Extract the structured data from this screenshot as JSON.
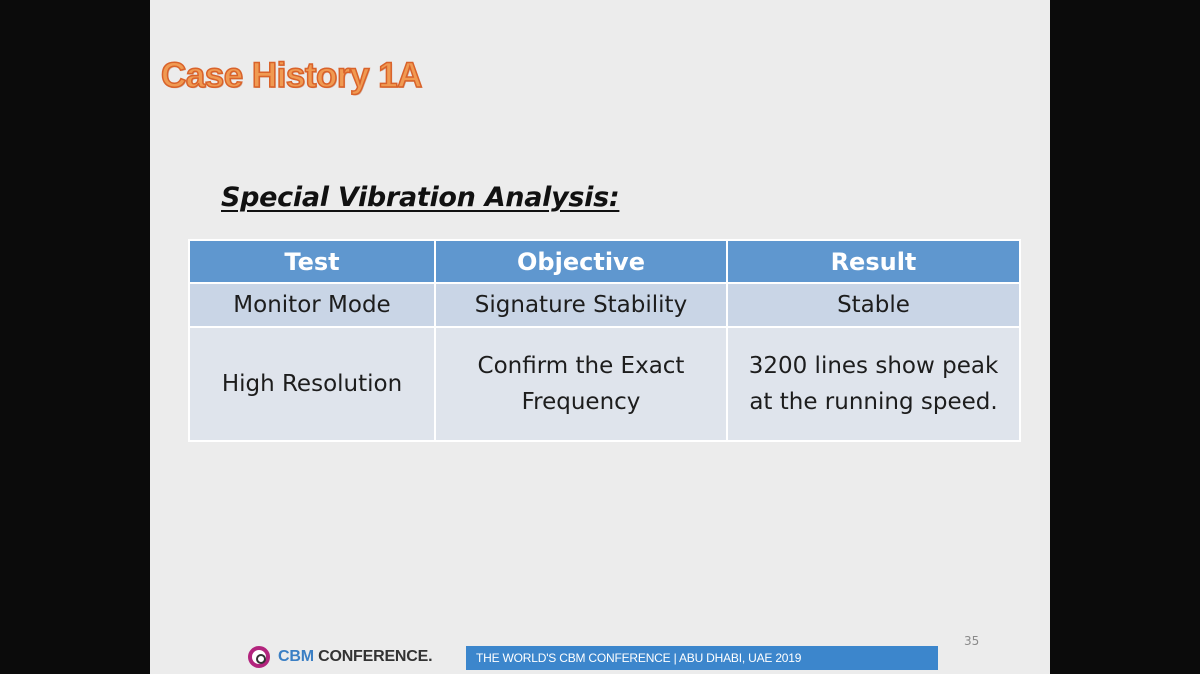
{
  "slide": {
    "title": "Case History 1A",
    "subtitle": "Special Vibration Analysis:",
    "page_number": "35"
  },
  "table": {
    "headers": [
      "Test",
      "Objective",
      "Result"
    ],
    "rows": [
      {
        "test": [
          "Monitor Mode"
        ],
        "objective": [
          "Signature Stability"
        ],
        "result": [
          "Stable"
        ]
      },
      {
        "test": [
          "High Resolution"
        ],
        "objective": [
          "Confirm the Exact",
          "Frequency"
        ],
        "result": [
          "3200 lines show peak",
          "at the running speed."
        ]
      }
    ]
  },
  "footer": {
    "logo_cbm": "CBM",
    "logo_conference": "CONFERENCE.",
    "banner": "THE  WORLD'S CBM CONFERENCE  |  ABU DHABI, UAE  2019"
  },
  "colors": {
    "title": "#f09a52",
    "header_fill": "#5f97cf",
    "row_a_fill": "#c9d5e6",
    "row_b_fill": "#dfe4ec",
    "banner": "#3c86cc",
    "logo_ring": "#b2247d"
  }
}
